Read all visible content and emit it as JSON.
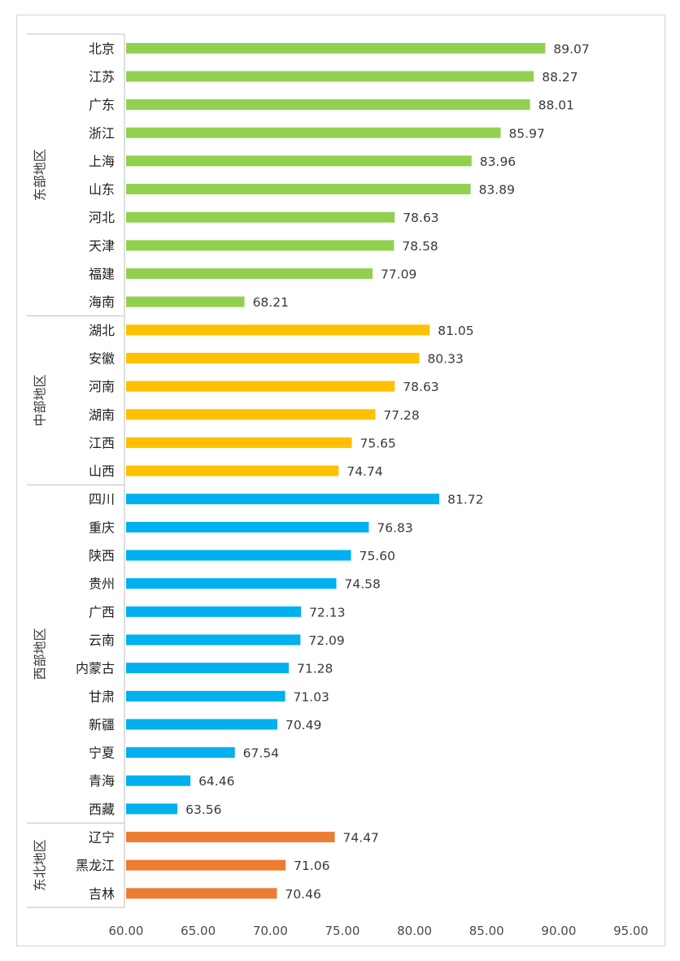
{
  "chart_data": {
    "type": "bar",
    "orientation": "horizontal",
    "title": "",
    "xlabel": "",
    "ylabel": "",
    "xlim": [
      60,
      95
    ],
    "x_ticks": [
      "60.00",
      "65.00",
      "70.00",
      "75.00",
      "80.00",
      "85.00",
      "90.00",
      "95.00"
    ],
    "x_tick_values": [
      60,
      65,
      70,
      75,
      80,
      85,
      90,
      95
    ],
    "grid": false,
    "groups": [
      {
        "name": "东部地区",
        "color": "#92d050",
        "categories": [
          "北京",
          "江苏",
          "广东",
          "浙江",
          "上海",
          "山东",
          "河北",
          "天津",
          "福建",
          "海南"
        ],
        "values": [
          89.07,
          88.27,
          88.01,
          85.97,
          83.96,
          83.89,
          78.63,
          78.58,
          77.09,
          68.21
        ],
        "labels": [
          "89.07",
          "88.27",
          "88.01",
          "85.97",
          "83.96",
          "83.89",
          "78.63",
          "78.58",
          "77.09",
          "68.21"
        ]
      },
      {
        "name": "中部地区",
        "color": "#ffc000",
        "categories": [
          "湖北",
          "安徽",
          "河南",
          "湖南",
          "江西",
          "山西"
        ],
        "values": [
          81.05,
          80.33,
          78.63,
          77.28,
          75.65,
          74.74
        ],
        "labels": [
          "81.05",
          "80.33",
          "78.63",
          "77.28",
          "75.65",
          "74.74"
        ]
      },
      {
        "name": "西部地区",
        "color": "#00b0f0",
        "categories": [
          "四川",
          "重庆",
          "陕西",
          "贵州",
          "广西",
          "云南",
          "内蒙古",
          "甘肃",
          "新疆",
          "宁夏",
          "青海",
          "西藏"
        ],
        "values": [
          81.72,
          76.83,
          75.6,
          74.58,
          72.13,
          72.09,
          71.28,
          71.03,
          70.49,
          67.54,
          64.46,
          63.56
        ],
        "labels": [
          "81.72",
          "76.83",
          "75.60",
          "74.58",
          "72.13",
          "72.09",
          "71.28",
          "71.03",
          "70.49",
          "67.54",
          "64.46",
          "63.56"
        ]
      },
      {
        "name": "东北地区",
        "color": "#ed7d31",
        "categories": [
          "辽宁",
          "黑龙江",
          "吉林"
        ],
        "values": [
          74.47,
          71.06,
          70.46
        ],
        "labels": [
          "74.47",
          "71.06",
          "70.46"
        ]
      }
    ]
  }
}
